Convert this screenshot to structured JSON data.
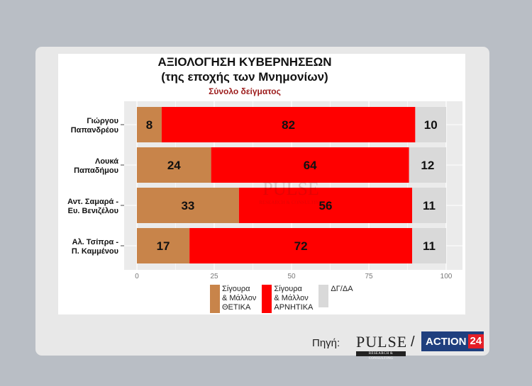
{
  "chart_data": {
    "type": "bar",
    "orientation": "horizontal",
    "stacked": true,
    "title": "ΑΞΙΟΛΟΓΗΣΗ ΚΥΒΕΡΝΗΣΕΩΝ",
    "subtitle": "(της εποχής των Μνημονίων)",
    "sample_label": "Σύνολο δείγματος",
    "categories": [
      [
        "Γιώργου",
        "Παπανδρέου"
      ],
      [
        "Λουκά",
        "Παπαδήμου"
      ],
      [
        "Αντ. Σαμαρά -",
        "Ευ. Βενιζέλου"
      ],
      [
        "Αλ. Τσίπρα -",
        "Π. Καμμένου"
      ]
    ],
    "series": [
      {
        "name": "Σίγουρα & Μάλλον ΘΕΤΙΚΑ",
        "color": "#c8844a",
        "values": [
          8,
          24,
          33,
          17
        ]
      },
      {
        "name": "Σίγουρα & Μάλλον ΑΡΝΗΤΙΚΑ",
        "color": "#ff0000",
        "values": [
          82,
          64,
          56,
          72
        ]
      },
      {
        "name": "ΔΓ/ΔΑ",
        "color": "#d9d9d9",
        "values": [
          10,
          12,
          11,
          11
        ]
      }
    ],
    "xlim": [
      0,
      100
    ],
    "xticks": [
      0,
      25,
      50,
      75,
      100
    ],
    "grid": true,
    "legend_position": "bottom"
  },
  "legend": [
    {
      "text": "Σίγουρα\n& Μάλλον\nΘΕΤΙΚΑ",
      "color": "#c8844a"
    },
    {
      "text": "Σίγουρα\n& Μάλλον\nΑΡΝΗΤΙΚΑ",
      "color": "#ff0000"
    },
    {
      "text": "ΔΓ/ΔΑ",
      "color": "#d9d9d9"
    }
  ],
  "source": {
    "label": "Πηγή:",
    "pulse_word": "PULSE",
    "pulse_tagline": "RESEARCH & CONSULTING",
    "action_word": "ACTION",
    "action_num": "24",
    "slash": "/"
  }
}
